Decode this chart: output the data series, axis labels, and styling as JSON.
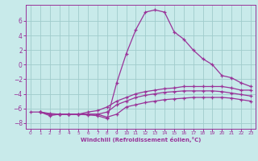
{
  "title": "",
  "xlabel": "Windchill (Refroidissement éolien,°C)",
  "ylabel": "",
  "bg_color": "#c8eaea",
  "grid_color": "#a0cccc",
  "line_color": "#993399",
  "xlim": [
    -0.5,
    23.5
  ],
  "ylim": [
    -8.8,
    8.2
  ],
  "yticks": [
    -8,
    -6,
    -4,
    -2,
    0,
    2,
    4,
    6
  ],
  "xticks": [
    0,
    1,
    2,
    3,
    4,
    5,
    6,
    7,
    8,
    9,
    10,
    11,
    12,
    13,
    14,
    15,
    16,
    17,
    18,
    19,
    20,
    21,
    22,
    23
  ],
  "lines": [
    {
      "x": [
        0,
        1,
        2,
        3,
        4,
        5,
        6,
        7,
        8,
        9,
        10,
        11,
        12,
        13,
        14,
        15,
        16,
        17,
        18,
        19,
        20,
        21,
        22,
        23
      ],
      "y": [
        -6.5,
        -6.5,
        -7.0,
        -6.8,
        -6.8,
        -6.8,
        -6.9,
        -7.0,
        -7.4,
        -2.5,
        1.5,
        4.8,
        7.2,
        7.5,
        7.2,
        4.5,
        3.5,
        2.0,
        0.8,
        0.0,
        -1.5,
        -1.8,
        -2.5,
        -3.0
      ]
    },
    {
      "x": [
        1,
        2,
        3,
        4,
        5,
        6,
        7,
        8,
        9,
        10,
        11,
        12,
        13,
        14,
        15,
        16,
        17,
        18,
        19,
        20,
        21,
        22,
        23
      ],
      "y": [
        -6.5,
        -6.7,
        -6.8,
        -6.8,
        -6.8,
        -6.5,
        -6.3,
        -5.8,
        -5.0,
        -4.5,
        -4.0,
        -3.7,
        -3.5,
        -3.3,
        -3.2,
        -3.0,
        -3.0,
        -3.0,
        -3.0,
        -3.0,
        -3.2,
        -3.5,
        -3.5
      ]
    },
    {
      "x": [
        1,
        2,
        3,
        4,
        5,
        6,
        7,
        8,
        9,
        10,
        11,
        12,
        13,
        14,
        15,
        16,
        17,
        18,
        19,
        20,
        21,
        22,
        23
      ],
      "y": [
        -6.5,
        -6.8,
        -6.8,
        -6.8,
        -6.8,
        -6.8,
        -6.8,
        -6.5,
        -5.5,
        -5.0,
        -4.5,
        -4.2,
        -4.0,
        -3.8,
        -3.7,
        -3.6,
        -3.6,
        -3.6,
        -3.6,
        -3.7,
        -3.9,
        -4.1,
        -4.3
      ]
    },
    {
      "x": [
        1,
        2,
        3,
        4,
        5,
        6,
        7,
        8,
        9,
        10,
        11,
        12,
        13,
        14,
        15,
        16,
        17,
        18,
        19,
        20,
        21,
        22,
        23
      ],
      "y": [
        -6.5,
        -6.8,
        -6.8,
        -6.8,
        -6.8,
        -6.8,
        -6.8,
        -7.2,
        -6.8,
        -5.8,
        -5.5,
        -5.2,
        -5.0,
        -4.8,
        -4.7,
        -4.6,
        -4.5,
        -4.5,
        -4.5,
        -4.5,
        -4.6,
        -4.8,
        -5.0
      ]
    }
  ]
}
